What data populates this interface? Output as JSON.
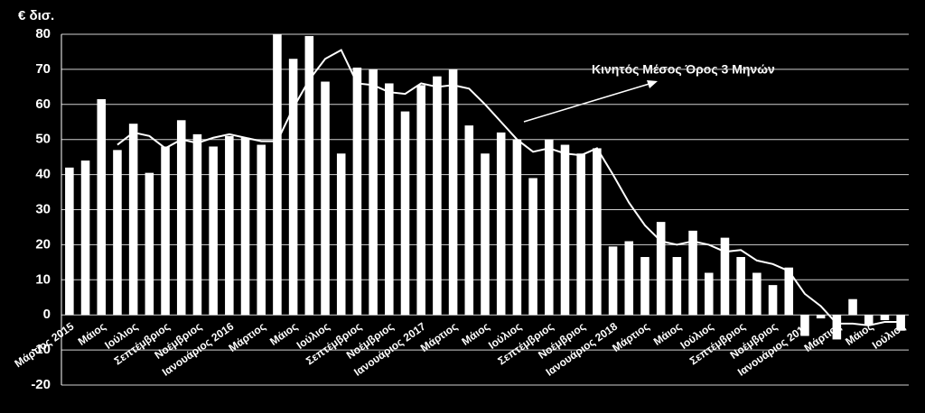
{
  "chart_data": {
    "type": "bar",
    "y_label": "€ δισ.",
    "categories": [
      "Μάρτιος 2015",
      null,
      "Μάιος",
      null,
      "Ιούλιος",
      null,
      "Σεπτέμβριος",
      null,
      "Νοέμβριος",
      null,
      "Ιανουάριος 2016",
      null,
      "Μάρτιος",
      null,
      "Μάιος",
      null,
      "Ιούλιος",
      null,
      "Σεπτέμβριος",
      null,
      "Νοέμβριος",
      null,
      "Ιανουάριος 2017",
      null,
      "Μάρτιος",
      null,
      "Μάιος",
      null,
      "Ιούλιος",
      null,
      "Σεπτέμβριος",
      null,
      "Νοέμβριος",
      null,
      "Ιανουάριος 2018",
      null,
      "Μάρτιος",
      null,
      "Μάιος",
      null,
      "Ιούλιος",
      null,
      "Σεπτέμβριος",
      null,
      "Νοέμβριος",
      null,
      "Ιανουάριος 2019",
      null,
      "Μάρτιος",
      null,
      "Μάιος",
      null,
      "Ιούλιος"
    ],
    "series": [
      {
        "type": "bar",
        "color": "#ffffff",
        "values": [
          42,
          44,
          61.5,
          47,
          54.5,
          40.5,
          48,
          55.5,
          51.5,
          48,
          51,
          50.5,
          48.5,
          80,
          73,
          79.5,
          66.5,
          46,
          70.5,
          70,
          66,
          58,
          65.5,
          68,
          70,
          54,
          46,
          52,
          50,
          39,
          50,
          48.5,
          46,
          47.5,
          19.5,
          21,
          16.5,
          26.5,
          16.5,
          24,
          12,
          22,
          16.5,
          12,
          8.5,
          13.5,
          -6,
          -1,
          -7,
          4.5,
          -3,
          -1.5,
          -4.5
        ]
      },
      {
        "type": "line",
        "name": "Κινητός  Μέσος  Όρος  3 Μηνών",
        "color": "#ffffff",
        "values": [
          null,
          null,
          null,
          48.5,
          52,
          51,
          47.5,
          50,
          49,
          50.5,
          51.5,
          50.5,
          49.5,
          49.5,
          59,
          67,
          73,
          75.5,
          66,
          65.5,
          63.5,
          63,
          66,
          65,
          65.5,
          64.5,
          60,
          55,
          50,
          46.5,
          47.5,
          46,
          45.5,
          47.5,
          40,
          32,
          25.5,
          21,
          20,
          21,
          20,
          18,
          18.5,
          15.5,
          14.5,
          12.5,
          6,
          2.5,
          -2.5,
          -2.5,
          -3,
          -2,
          -2
        ]
      }
    ],
    "ylim": [
      -20,
      80
    ],
    "yticks": [
      -20,
      -10,
      0,
      10,
      20,
      30,
      40,
      50,
      60,
      70,
      80
    ],
    "grid": true
  }
}
